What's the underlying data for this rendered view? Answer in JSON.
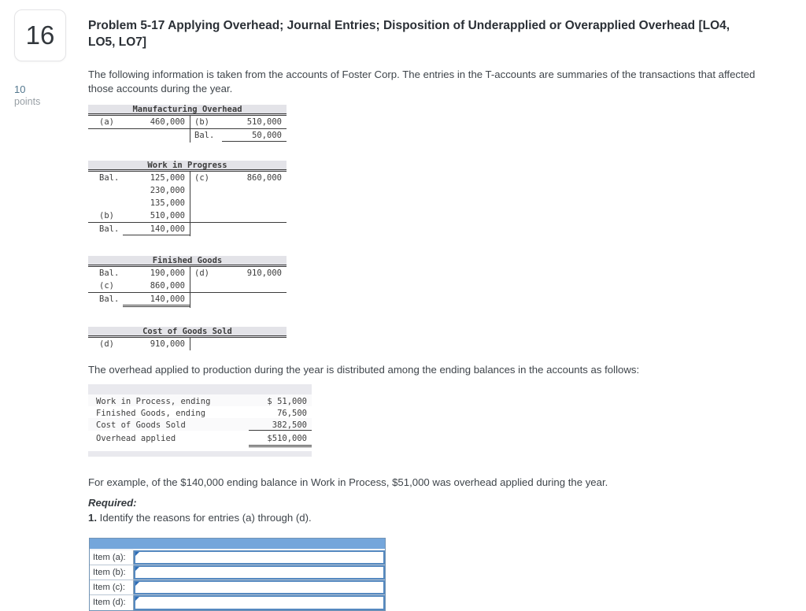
{
  "question": {
    "number": "16",
    "points_value": "10",
    "points_label": "points",
    "title": "Problem 5-17 Applying Overhead; Journal Entries; Disposition of Underapplied or Overapplied Overhead [LO4, LO5, LO7]",
    "intro": "The following information is taken from the accounts of Foster Corp. The entries in the T-accounts are summaries of the transactions that affected those accounts during the year.",
    "overhead_note": "The overhead applied to production during the year is distributed among the ending balances in the accounts as follows:",
    "example_note": "For example, of the $140,000 ending balance in Work in Process, $51,000 was overhead applied during the year.",
    "required_label": "Required:",
    "required_item_num": "1.",
    "required_item_text": " Identify the reasons for entries (a) through (d)."
  },
  "t_accounts": {
    "manufacturing_overhead": {
      "title": "Manufacturing Overhead",
      "rows": [
        {
          "ll": "(a)",
          "la": "460,000",
          "rl": "(b)",
          "ra": "510,000"
        },
        {
          "ll": "",
          "la": "",
          "rl": "Bal.",
          "ra": "50,000"
        }
      ]
    },
    "work_in_progress": {
      "title": "Work in Progress",
      "rows": [
        {
          "ll": "Bal.",
          "la": "125,000",
          "rl": "(c)",
          "ra": "860,000"
        },
        {
          "ll": "",
          "la": "230,000",
          "rl": "",
          "ra": ""
        },
        {
          "ll": "",
          "la": "135,000",
          "rl": "",
          "ra": ""
        },
        {
          "ll": "(b)",
          "la": "510,000",
          "rl": "",
          "ra": ""
        },
        {
          "ll": "Bal.",
          "la": "140,000",
          "rl": "",
          "ra": ""
        }
      ]
    },
    "finished_goods": {
      "title": "Finished Goods",
      "rows": [
        {
          "ll": "Bal.",
          "la": "190,000",
          "rl": "(d)",
          "ra": "910,000"
        },
        {
          "ll": "(c)",
          "la": "860,000",
          "rl": "",
          "ra": ""
        },
        {
          "ll": "Bal.",
          "la": "140,000",
          "rl": "",
          "ra": ""
        }
      ]
    },
    "cost_of_goods_sold": {
      "title": "Cost of Goods Sold",
      "rows": [
        {
          "ll": "(d)",
          "la": "910,000",
          "rl": "",
          "ra": ""
        }
      ]
    }
  },
  "distribution_table": {
    "rows": [
      {
        "label": "Work in Process, ending",
        "amount": "$ 51,000"
      },
      {
        "label": "Finished Goods, ending",
        "amount": "76,500"
      },
      {
        "label": "Cost of Goods Sold",
        "amount": "382,500"
      },
      {
        "label": "Overhead applied",
        "amount": "$510,000"
      }
    ]
  },
  "answer_table": {
    "rows": [
      {
        "label": "Item (a):",
        "value": ""
      },
      {
        "label": "Item (b):",
        "value": ""
      },
      {
        "label": "Item (c):",
        "value": ""
      },
      {
        "label": "Item (d):",
        "value": ""
      }
    ]
  },
  "colors": {
    "accent_blue": "#74a6db",
    "input_border_blue": "#5589c0",
    "taccount_header_gray": "#e3e3e8"
  }
}
